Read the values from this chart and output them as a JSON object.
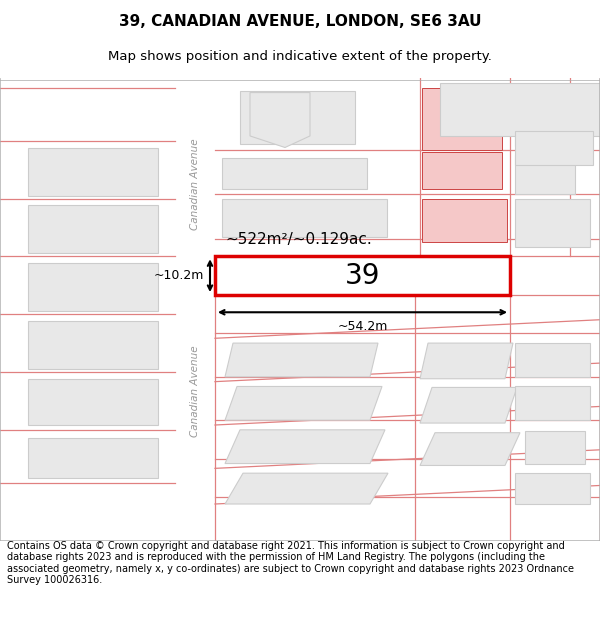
{
  "title": "39, CANADIAN AVENUE, LONDON, SE6 3AU",
  "subtitle": "Map shows position and indicative extent of the property.",
  "footer": "Contains OS data © Crown copyright and database right 2021. This information is subject to Crown copyright and database rights 2023 and is reproduced with the permission of HM Land Registry. The polygons (including the associated geometry, namely x, y co-ordinates) are subject to Crown copyright and database rights 2023 Ordnance Survey 100026316.",
  "map_bg": "#ffffff",
  "road_color": "#f8f8f8",
  "road_line_color": "#e08080",
  "building_fill": "#e8e8e8",
  "building_edge": "#cccccc",
  "highlight_fill": "#f5c8c8",
  "highlight_edge": "#cc4444",
  "subject_fill": "#ffffff",
  "subject_edge": "#dd0000",
  "area_text": "~522m²/~0.129ac.",
  "width_text": "~54.2m",
  "height_text": "~10.2m",
  "label_39": "39",
  "road_label": "Canadian Avenue",
  "title_fontsize": 11,
  "subtitle_fontsize": 9.5,
  "footer_fontsize": 7.0
}
